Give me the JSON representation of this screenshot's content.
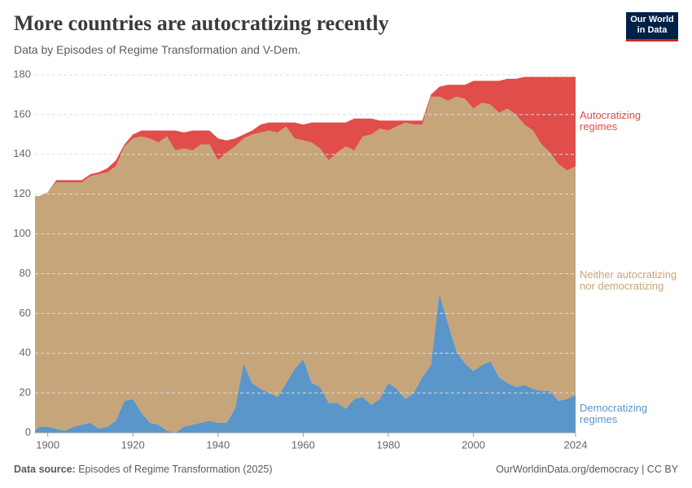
{
  "title": "More countries are autocratizing recently",
  "subtitle": "Data by Episodes of Regime Transformation and V-Dem.",
  "logo": [
    "Our World",
    "in Data"
  ],
  "footer": {
    "source_label": "Data source:",
    "source": "Episodes of Regime Transformation (2025)",
    "url": "OurWorldinData.org/democracy | CC BY"
  },
  "chart_data": {
    "type": "area",
    "stacked": true,
    "x": [
      1897,
      1898,
      1900,
      1902,
      1904,
      1906,
      1908,
      1910,
      1912,
      1914,
      1916,
      1918,
      1920,
      1922,
      1924,
      1926,
      1928,
      1930,
      1932,
      1934,
      1936,
      1938,
      1940,
      1942,
      1944,
      1946,
      1948,
      1950,
      1952,
      1954,
      1956,
      1958,
      1960,
      1962,
      1964,
      1966,
      1968,
      1970,
      1972,
      1974,
      1976,
      1978,
      1980,
      1982,
      1984,
      1986,
      1988,
      1990,
      1992,
      1994,
      1996,
      1998,
      2000,
      2002,
      2004,
      2006,
      2008,
      2010,
      2012,
      2014,
      2016,
      2018,
      2020,
      2022,
      2024
    ],
    "xlim": [
      1897,
      2024
    ],
    "xticks": [
      1900,
      1920,
      1940,
      1960,
      1980,
      2000,
      2024
    ],
    "ylim": [
      0,
      180
    ],
    "yticks": [
      0,
      20,
      40,
      60,
      80,
      100,
      120,
      140,
      160,
      180
    ],
    "grid": true,
    "series": [
      {
        "name": "Democratizing regimes",
        "color": "#5a96c9",
        "values": [
          1,
          3,
          3,
          2,
          1,
          3,
          4,
          5,
          2,
          3,
          6,
          16,
          17,
          10,
          5,
          4,
          1,
          0,
          3,
          4,
          5,
          6,
          5,
          5,
          12,
          35,
          25,
          22,
          20,
          18,
          25,
          32,
          37,
          25,
          23,
          15,
          15,
          12,
          17,
          18,
          14,
          17,
          25,
          22,
          17,
          20,
          28,
          34,
          70,
          55,
          41,
          35,
          31,
          34,
          36,
          28,
          25,
          23,
          24,
          22,
          21,
          21,
          16,
          17,
          19
        ]
      },
      {
        "name": "Neither autocratizing nor democratizing",
        "color": "#c6a57a",
        "values": [
          118,
          116,
          118,
          124,
          125,
          123,
          122,
          124,
          128,
          128,
          128,
          128,
          131,
          139,
          143,
          142,
          148,
          142,
          140,
          138,
          140,
          139,
          132,
          136,
          132,
          113,
          125,
          129,
          132,
          133,
          129,
          116,
          110,
          121,
          120,
          122,
          126,
          132,
          125,
          131,
          136,
          136,
          127,
          132,
          139,
          135,
          127,
          135,
          99,
          112,
          128,
          133,
          132,
          132,
          129,
          133,
          138,
          137,
          131,
          130,
          124,
          120,
          119,
          115,
          115
        ]
      },
      {
        "name": "Autocratizing regimes",
        "color": "#e04d4a",
        "values": [
          0,
          0,
          0,
          1,
          1,
          1,
          1,
          1,
          1,
          2,
          3,
          1,
          2,
          3,
          4,
          6,
          3,
          10,
          8,
          10,
          7,
          7,
          11,
          6,
          4,
          2,
          2,
          4,
          4,
          5,
          2,
          8,
          8,
          10,
          13,
          19,
          15,
          12,
          16,
          9,
          8,
          4,
          5,
          3,
          1,
          2,
          2,
          1,
          5,
          8,
          6,
          7,
          14,
          11,
          12,
          16,
          15,
          18,
          24,
          27,
          34,
          38,
          44,
          47,
          45
        ]
      }
    ]
  }
}
